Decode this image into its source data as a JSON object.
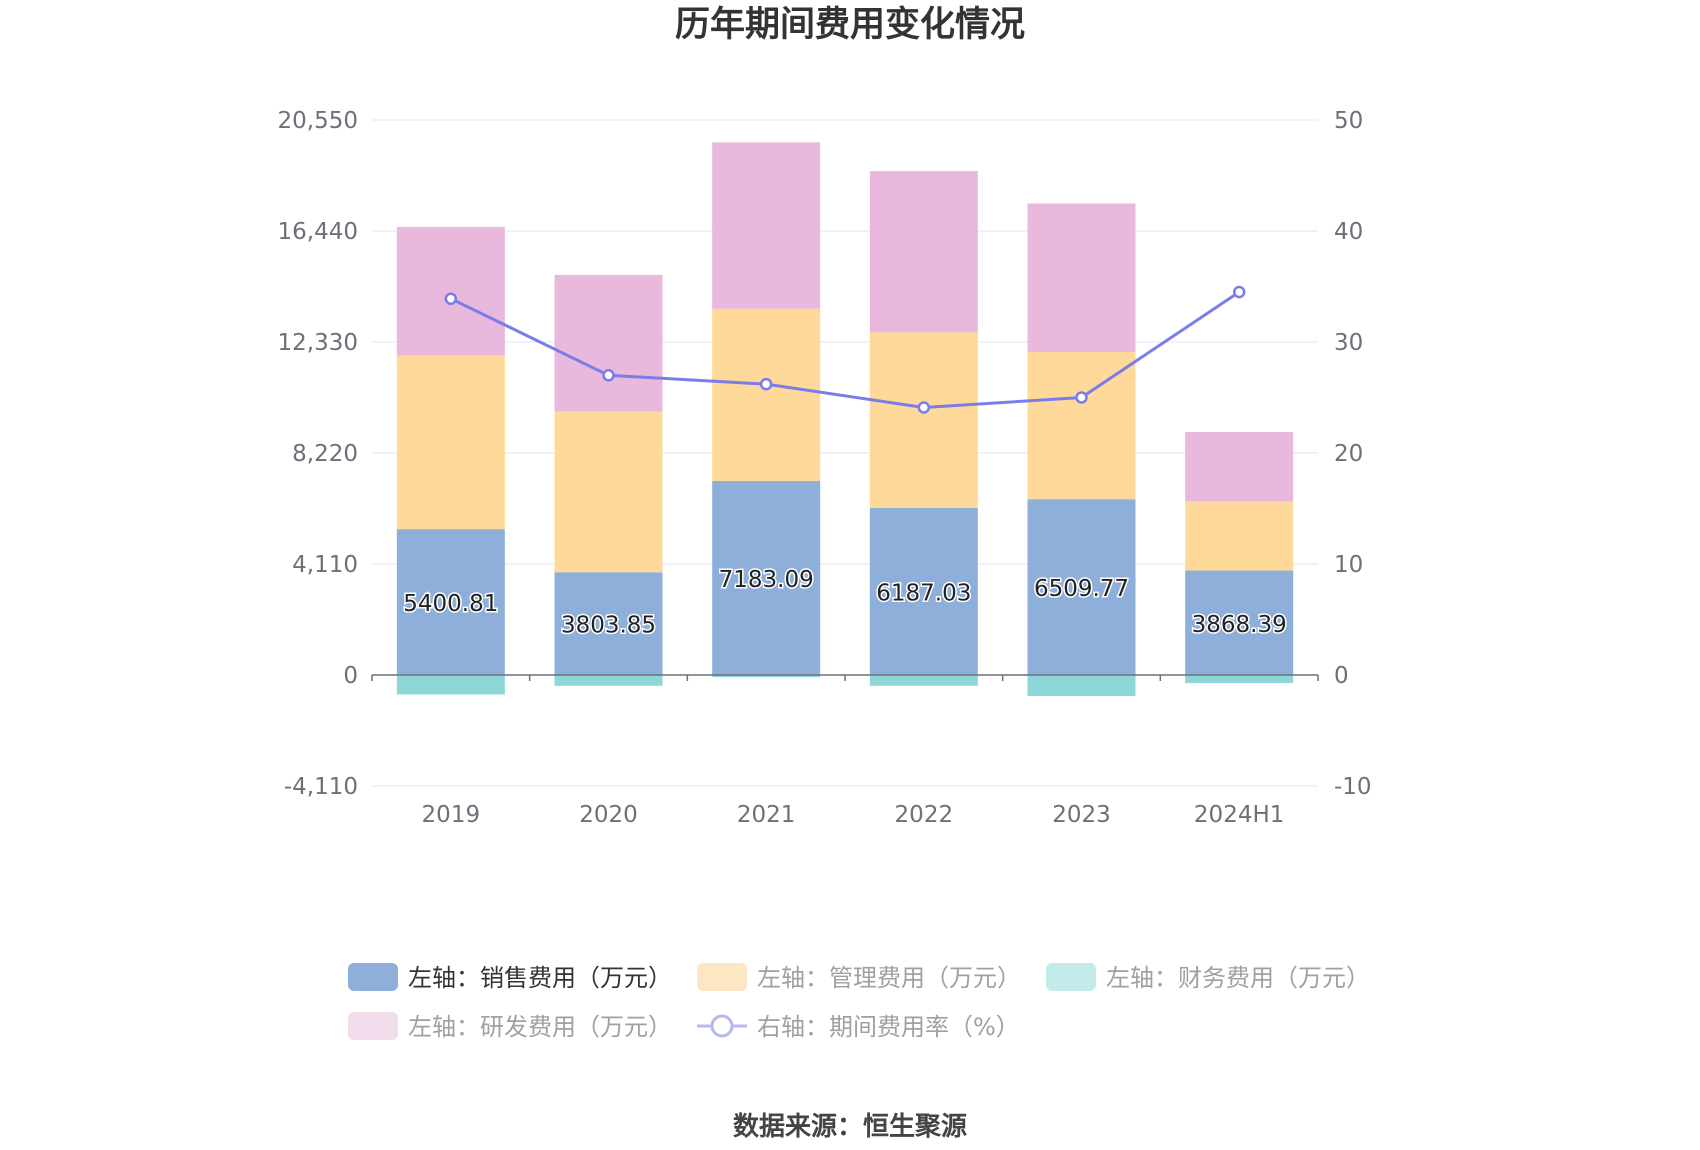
{
  "chart_data": {
    "type": "bar",
    "title": "历年期间费用变化情况",
    "categories": [
      "2019",
      "2020",
      "2021",
      "2022",
      "2023",
      "2024H1"
    ],
    "y_left": {
      "min": -4110,
      "max": 20550,
      "ticks": [
        -4110,
        0,
        4110,
        8220,
        12330,
        16440,
        20550
      ],
      "tick_labels": [
        "-4,110",
        "0",
        "4,110",
        "8,220",
        "12,330",
        "16,440",
        "20,550"
      ]
    },
    "y_right": {
      "min": -10,
      "max": 50,
      "ticks": [
        -10,
        0,
        10,
        20,
        30,
        40,
        50
      ],
      "tick_labels": [
        "-10",
        "0",
        "10",
        "20",
        "30",
        "40",
        "50"
      ]
    },
    "series": [
      {
        "name": "左轴：销售费用（万元）",
        "axis": "left",
        "type": "bar",
        "stack": "cost",
        "color": "#8eafda",
        "values": [
          5400.81,
          3803.85,
          7183.09,
          6187.03,
          6509.77,
          3868.39
        ],
        "labels": [
          "5400.81",
          "3803.85",
          "7183.09",
          "6187.03",
          "6509.77",
          "3868.39"
        ]
      },
      {
        "name": "左轴：管理费用（万元）",
        "axis": "left",
        "type": "bar",
        "stack": "cost",
        "color": "#ffd99a",
        "values": [
          6430,
          5950,
          6380,
          6500,
          5450,
          2560
        ]
      },
      {
        "name": "左轴：财务费用（万元）",
        "axis": "left",
        "type": "bar",
        "stack": "cost",
        "color": "#8dd7d9",
        "values": [
          -720,
          -400,
          -80,
          -400,
          -780,
          -300
        ]
      },
      {
        "name": "左轴：研发费用（万元）",
        "axis": "left",
        "type": "bar",
        "stack": "cost",
        "color": "#e8b9dc",
        "values": [
          4760,
          5060,
          6160,
          5970,
          5500,
          2570
        ]
      },
      {
        "name": "右轴：期间费用率（%）",
        "axis": "right",
        "type": "line",
        "color": "#7a7de8",
        "values": [
          33.9,
          27.0,
          26.2,
          24.1,
          25.0,
          34.5
        ]
      }
    ]
  },
  "legend": {
    "items": [
      {
        "label": "左轴：销售费用（万元）",
        "color": "#8eafda",
        "kind": "bar",
        "active": true
      },
      {
        "label": "左轴：管理费用（万元）",
        "color": "#fde6c4",
        "kind": "bar",
        "active": false
      },
      {
        "label": "左轴：财务费用（万元）",
        "color": "#c3ebea",
        "kind": "bar",
        "active": false
      },
      {
        "label": "左轴：研发费用（万元）",
        "color": "#f1dcec",
        "kind": "bar",
        "active": false
      },
      {
        "label": "右轴：期间费用率（%）",
        "color": "#b6b8f2",
        "kind": "line",
        "active": false
      }
    ]
  },
  "source": "数据来源：恒生聚源"
}
